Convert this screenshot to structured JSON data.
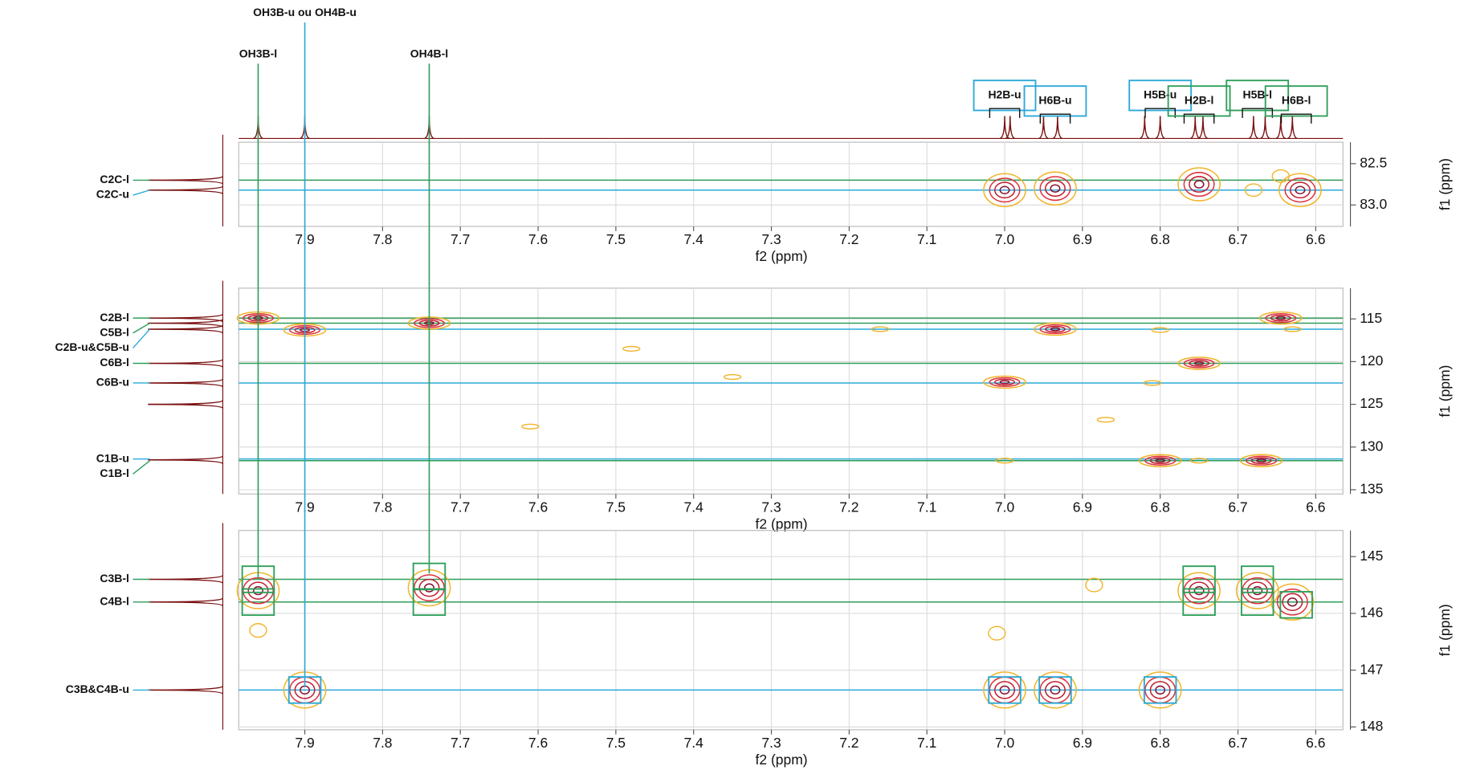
{
  "f2_label": "f2 (ppm)",
  "f1_label": "f1 (ppm)",
  "proton_labels": [
    {
      "text": "OH3B-u ou OH4B-u",
      "x": 7.9,
      "f1_end": 147.3,
      "color": "#2aa9d8"
    },
    {
      "text": "OH3B-l",
      "x": 7.96,
      "f1_end": 145.4,
      "color": "#2e9e5a"
    },
    {
      "text": "OH4B-l",
      "x": 7.74,
      "f1_end": 145.3,
      "color": "#2e9e5a"
    }
  ],
  "proton_boxes": [
    {
      "text": "H2B-u",
      "x": 7.0,
      "color": "#2aa9d8"
    },
    {
      "text": "H6B-u",
      "x": 6.935,
      "color": "#2aa9d8"
    },
    {
      "text": "H5B-u",
      "x": 6.8,
      "color": "#2aa9d8"
    },
    {
      "text": "H2B-l",
      "x": 6.75,
      "color": "#2e9e5a"
    },
    {
      "text": "H5B-l",
      "x": 6.675,
      "color": "#2e9e5a"
    },
    {
      "text": "H6B-l",
      "x": 6.625,
      "color": "#2e9e5a"
    }
  ],
  "proton_peaks": [
    7.96,
    7.9,
    7.74,
    7.0,
    6.993,
    6.95,
    6.932,
    6.82,
    6.8,
    6.755,
    6.745,
    6.68,
    6.665,
    6.645,
    6.63
  ],
  "chart_data": [
    {
      "type": "contour",
      "grid": true,
      "xlim": [
        7.985,
        6.565
      ],
      "xticks": [
        7.9,
        7.8,
        7.7,
        7.6,
        7.5,
        7.4,
        7.3,
        7.2,
        7.1,
        {
          "value": 7,
          "label": "7.0"
        },
        6.9,
        6.8,
        6.7,
        6.6
      ],
      "ylim": [
        82.24,
        83.26
      ],
      "yticks": [
        82.5,
        {
          "value": 83,
          "label": "83.0"
        }
      ],
      "carbon_labels": [
        {
          "text": "C2C-l",
          "y": 82.7,
          "color": "#2e9e5a"
        },
        {
          "text": "C2C-u",
          "y": 82.82,
          "color": "#2aa9d8"
        }
      ],
      "f1_peaks": [
        82.7,
        82.82
      ],
      "x": [
        7.0,
        6.75,
        6.62,
        6.935
      ],
      "y": [
        82.82,
        82.75,
        82.82,
        82.8
      ],
      "weak_x": [
        6.68,
        6.645
      ],
      "weak_y": [
        82.82,
        82.65
      ],
      "boxes": []
    },
    {
      "type": "contour",
      "grid": true,
      "xlim": [
        7.985,
        6.565
      ],
      "xticks": [
        7.9,
        7.8,
        7.7,
        7.6,
        7.5,
        7.4,
        7.3,
        7.2,
        7.1,
        {
          "value": 7,
          "label": "7.0"
        },
        6.9,
        6.8,
        6.7,
        6.6
      ],
      "ylim": [
        111.4,
        135.5
      ],
      "yticks": [
        115,
        120,
        125,
        130,
        135
      ],
      "carbon_labels": [
        {
          "text": "C2B-l",
          "y": 114.9,
          "color": "#2e9e5a"
        },
        {
          "text": "C5B-l",
          "y": 115.5,
          "color": "#2e9e5a"
        },
        {
          "text": "C2B-u&C5B-u",
          "y": 116.2,
          "color": "#2aa9d8"
        },
        {
          "text": "C6B-l",
          "y": 120.2,
          "color": "#2e9e5a"
        },
        {
          "text": "C6B-u",
          "y": 122.5,
          "color": "#2aa9d8"
        },
        {
          "text": "C1B-u",
          "y": 131.4,
          "color": "#2aa9d8"
        },
        {
          "text": "C1B-l",
          "y": 131.6,
          "color": "#2e9e5a"
        }
      ],
      "f1_peaks": [
        114.9,
        115.5,
        116.2,
        120.2,
        122.5,
        125.0,
        131.5
      ],
      "x": [
        7.96,
        7.9,
        7.74,
        6.935,
        6.75,
        7.0,
        6.8,
        6.67,
        6.645
      ],
      "y": [
        114.9,
        116.3,
        115.5,
        116.2,
        120.2,
        122.4,
        131.6,
        131.6,
        114.9
      ],
      "weak_x": [
        7.0,
        6.8,
        6.81,
        6.75,
        7.16,
        7.48,
        7.35,
        6.87,
        7.61,
        6.63
      ],
      "weak_y": [
        131.6,
        116.3,
        122.5,
        131.6,
        116.2,
        118.5,
        121.8,
        126.8,
        127.6,
        116.2
      ],
      "boxes": []
    },
    {
      "type": "contour",
      "grid": true,
      "xlim": [
        7.985,
        6.565
      ],
      "xticks": [
        7.9,
        7.8,
        7.7,
        7.6,
        7.5,
        7.4,
        7.3,
        7.2,
        7.1,
        {
          "value": 7,
          "label": "7.0"
        },
        6.9,
        6.8,
        6.7,
        6.6
      ],
      "ylim": [
        144.54,
        148.05
      ],
      "yticks": [
        145,
        146,
        147,
        148
      ],
      "carbon_labels": [
        {
          "text": "C3B-l",
          "y": 145.4,
          "color": "#2e9e5a"
        },
        {
          "text": "C4B-l",
          "y": 145.8,
          "color": "#2e9e5a"
        },
        {
          "text": "C3B&C4B-u",
          "y": 147.35,
          "color": "#2aa9d8"
        }
      ],
      "f1_peaks": [
        145.4,
        145.8,
        147.35
      ],
      "x": [
        7.96,
        7.74,
        6.75,
        6.675,
        7.9,
        7.0,
        6.935,
        6.8,
        6.63
      ],
      "y": [
        145.6,
        145.55,
        145.6,
        145.6,
        147.35,
        147.35,
        147.35,
        147.35,
        145.8
      ],
      "weak_x": [
        7.96,
        6.885,
        7.01
      ],
      "weak_y": [
        146.3,
        145.5,
        146.35
      ],
      "boxes": [
        {
          "x": 7.96,
          "y": 145.4,
          "color": "#2e9e5a"
        },
        {
          "x": 7.96,
          "y": 145.8,
          "color": "#2e9e5a"
        },
        {
          "x": 7.74,
          "y": 145.35,
          "color": "#2e9e5a"
        },
        {
          "x": 7.74,
          "y": 145.8,
          "color": "#2e9e5a"
        },
        {
          "x": 6.75,
          "y": 145.4,
          "color": "#2e9e5a"
        },
        {
          "x": 6.75,
          "y": 145.8,
          "color": "#2e9e5a"
        },
        {
          "x": 6.675,
          "y": 145.4,
          "color": "#2e9e5a"
        },
        {
          "x": 6.675,
          "y": 145.8,
          "color": "#2e9e5a"
        },
        {
          "x": 6.625,
          "y": 145.85,
          "color": "#2e9e5a"
        },
        {
          "x": 7.9,
          "y": 147.35,
          "color": "#2aa9d8"
        },
        {
          "x": 7.0,
          "y": 147.35,
          "color": "#2aa9d8"
        },
        {
          "x": 6.935,
          "y": 147.35,
          "color": "#2aa9d8"
        },
        {
          "x": 6.8,
          "y": 147.35,
          "color": "#2aa9d8"
        }
      ]
    }
  ]
}
